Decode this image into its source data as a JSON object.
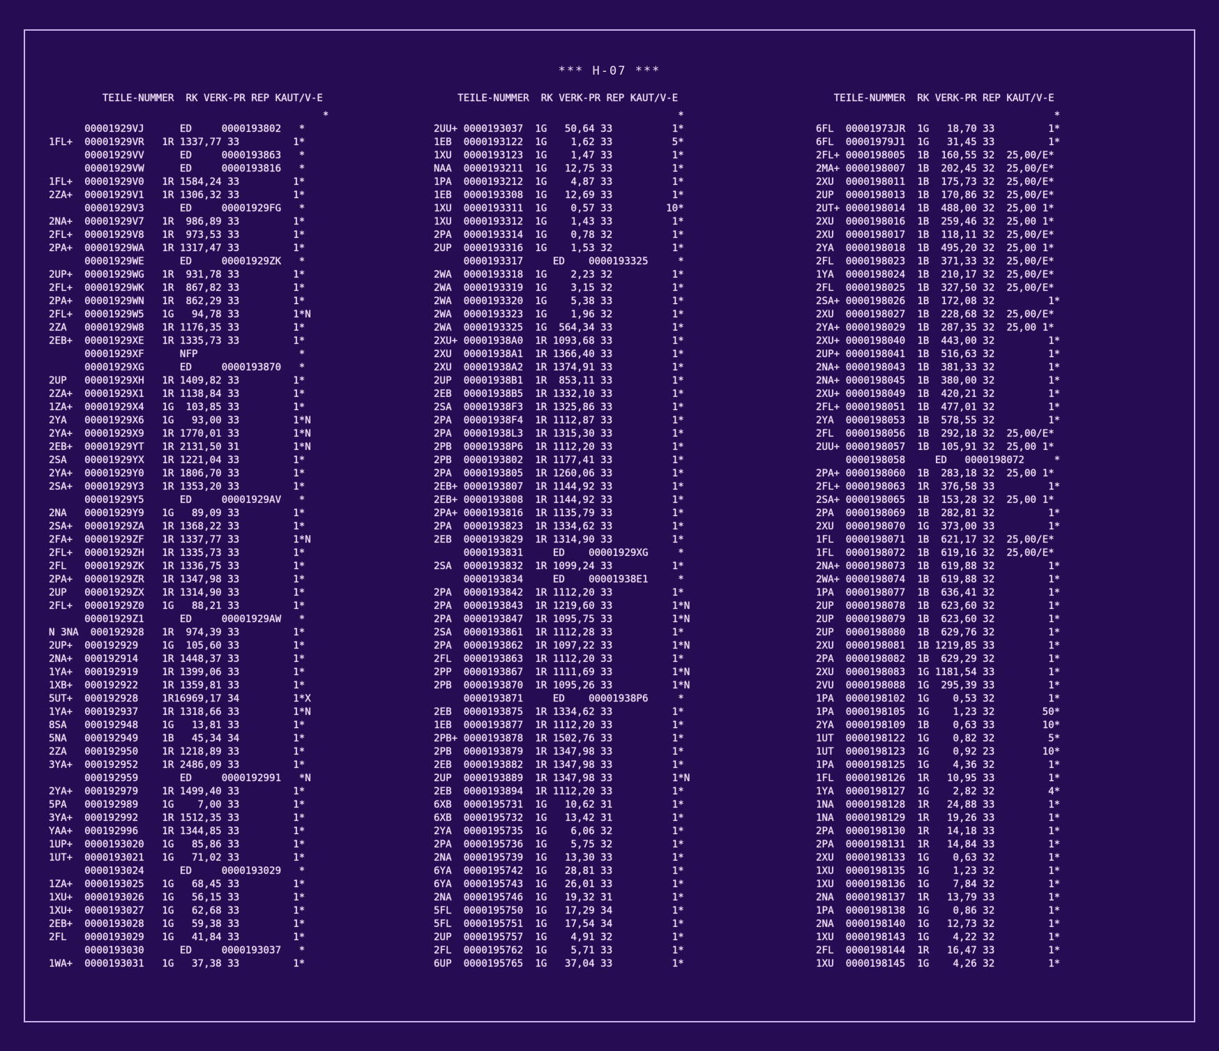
{
  "report": {
    "title": "*** H-07 ***"
  },
  "columns": [
    {
      "header": "         TEILE-NUMMER  RK VERK-PR REP KAUT/V-E",
      "star": "                                              *",
      "rows": [
        "      00001929VJ      ED     0000193802   *",
        "1FL+  00001929VR   1R 1337,77 33         1*",
        "      00001929VV      ED     0000193863   *",
        "      00001929VW      ED     0000193816   *",
        "1FL+  00001929V0   1R 1584,24 33         1*",
        "2ZA+  00001929V1   1R 1306,32 33         1*",
        "      00001929V3      ED     00001929FG   *",
        "2NA+  00001929V7   1R  986,89 33         1*",
        "2FL+  00001929V8   1R  973,53 33         1*",
        "2PA+  00001929WA   1R 1317,47 33         1*",
        "      00001929WE      ED     00001929ZK   *",
        "2UP+  00001929WG   1R  931,78 33         1*",
        "2FL+  00001929WK   1R  867,82 33         1*",
        "2PA+  00001929WN   1R  862,29 33         1*",
        "2FL+  00001929W5   1G   94,78 33         1*N",
        "2ZA   00001929W8   1R 1176,35 33         1*",
        "2EB+  00001929XE   1R 1335,73 33         1*",
        "      00001929XF      NFP                 *",
        "      00001929XG      ED     0000193870   *",
        "2UP   00001929XH   1R 1409,82 33         1*",
        "2ZA+  00001929X1   1R 1138,84 33         1*",
        "1ZA+  00001929X4   1G  103,85 33         1*",
        "2YA   00001929X6   1G   93,00 33         1*N",
        "2YA+  00001929X9   1R 1770,01 33         1*N",
        "2EB+  00001929YT   1R 2131,50 31         1*N",
        "2SA   00001929YX   1R 1221,04 33         1*",
        "2YA+  00001929Y0   1R 1806,70 33         1*",
        "2SA+  00001929Y3   1R 1353,20 33         1*",
        "      00001929Y5      ED     00001929AV   *",
        "2NA   00001929Y9   1G   89,09 33         1*",
        "2SA+  00001929ZA   1R 1368,22 33         1*",
        "2FA+  00001929ZF   1R 1337,77 33         1*N",
        "2FL+  00001929ZH   1R 1335,73 33         1*",
        "2FL   00001929ZK   1R 1336,75 33         1*",
        "2PA+  00001929ZR   1R 1347,98 33         1*",
        "2UP   00001929ZX   1R 1314,90 33         1*",
        "2FL+  00001929Z0   1G   88,21 33         1*",
        "      00001929Z1      ED     00001929AW   *",
        "N 3NA  000192928   1R  974,39 33         1*",
        "2UP+  000192929    1G  105,60 33         1*",
        "2NA+  000192914    1R 1448,37 33         1*",
        "1YA+  000192919    1R 1399,06 33         1*",
        "1XB+  000192922    1R 1359,81 33         1*",
        "5UT+  000192928    1R16969,17 34         1*X",
        "1YA+  000192937    1R 1318,66 33         1*N",
        "8SA   000192948    1G   13,81 33         1*",
        "5NA   000192949    1B   45,34 34         1*",
        "2ZA   000192950    1R 1218,89 33         1*",
        "3YA+  000192952    1R 2486,09 33         1*",
        "      000192959       ED     0000192991   *N",
        "2YA+  000192979    1R 1499,40 33         1*",
        "5PA   000192989    1G    7,00 33         1*",
        "3YA+  000192992    1R 1512,35 33         1*",
        "YAA+  000192996    1R 1344,85 33         1*",
        "1UP+  0000193020   1G   85,86 33         1*",
        "1UT+  0000193021   1G   71,02 33         1*",
        "      0000193024      ED     0000193029   *",
        "1ZA+  0000193025   1G   68,45 33         1*",
        "1XU+  0000193026   1G   56,15 33         1*",
        "1XU+  0000193027   1G   62,68 33         1*",
        "2EB+  0000193028   1G   59,38 33         1*",
        "2FL   0000193029   1G   41,84 33         1*",
        "      0000193030      ED     0000193037   *",
        "1WA+  0000193031   1G   37,38 33         1*"
      ]
    },
    {
      "header": "    TEILE-NUMMER  RK VERK-PR REP KAUT/V-E",
      "star": "                                         *",
      "rows": [
        "2UU+ 0000193037  1G   50,64 33          1*",
        "1EB  0000193122  1G    1,62 33          5*",
        "1XU  0000193123  1G    1,47 33          1*",
        "NAA  0000193211  1G   12,75 33          1*",
        "1PA  0000193212  1G    4,87 33          1*",
        "1EB  0000193308  1G   12,69 33          1*",
        "1XU  0000193311  1G    0,57 33         10*",
        "1XU  0000193312  1G    1,43 33          1*",
        "2PA  0000193314  1G    0,78 32          1*",
        "2UP  0000193316  1G    1,53 32          1*",
        "     0000193317     ED    0000193325     *",
        "2WA  0000193318  1G    2,23 32          1*",
        "2WA  0000193319  1G    3,15 32          1*",
        "2WA  0000193320  1G    5,38 33          1*",
        "2WA  0000193323  1G    1,96 32          1*",
        "2WA  0000193325  1G  564,34 33          1*",
        "2XU+ 00001938A0  1R 1093,68 33          1*",
        "2XU  00001938A1  1R 1366,40 33          1*",
        "2XU  00001938A2  1R 1374,91 33          1*",
        "2UP  00001938B1  1R  853,11 33          1*",
        "2EB  00001938B5  1R 1332,10 33          1*",
        "2SA  00001938F3  1R 1325,86 33          1*",
        "2PA  00001938F4  1R 1112,87 33          1*",
        "2PA  00001938L3  1R 1315,30 33          1*",
        "2PB  00001938P6  1R 1112,20 33          1*",
        "2PB  0000193802  1R 1177,41 33          1*",
        "2PA  0000193805  1R 1260,06 33          1*",
        "2EB+ 0000193807  1R 1144,92 33          1*",
        "2EB+ 0000193808  1R 1144,92 33          1*",
        "2PA+ 0000193816  1R 1135,79 33          1*",
        "2PA  0000193823  1R 1334,62 33          1*",
        "2EB  0000193829  1R 1314,90 33          1*",
        "     0000193831     ED    00001929XG     *",
        "2SA  0000193832  1R 1099,24 33          1*",
        "     0000193834     ED    00001938E1     *",
        "2PA  0000193842  1R 1112,20 33          1*",
        "2PA  0000193843  1R 1219,60 33          1*N",
        "2PA  0000193847  1R 1095,75 33          1*N",
        "2SA  0000193861  1R 1112,28 33          1*",
        "2PA  0000193862  1R 1097,22 33          1*N",
        "2FL  0000193863  1R 1112,20 33          1*",
        "2PP  0000193867  1R 1111,69 33          1*N",
        "2PB  0000193870  1R 1095,26 33          1*N",
        "     0000193871     ED    00001938P6     *",
        "2EB  0000193875  1R 1334,62 33          1*",
        "1EB  0000193877  1R 1112,20 33          1*",
        "2PB+ 0000193878  1R 1502,76 33          1*",
        "2PB  0000193879  1R 1347,98 33          1*",
        "2EB  0000193882  1R 1347,98 33          1*",
        "2UP  0000193889  1R 1347,98 33          1*N",
        "2EB  0000193894  1R 1112,20 33          1*",
        "6XB  0000195731  1G   10,62 31          1*",
        "6XB  0000195732  1G   13,42 31          1*",
        "2YA  0000195735  1G    6,06 32          1*",
        "2PA  0000195736  1G    5,75 32          1*",
        "2NA  0000195739  1G   13,30 33          1*",
        "6YA  0000195742  1G   28,81 33          1*",
        "6YA  0000195743  1G   26,01 33          1*",
        "2NA  0000195746  1G   19,32 31          1*",
        "5FL  0000195750  1G   17,29 34          1*",
        "5FL  0000195751  1G   17,54 34          1*",
        "2UP  0000195757  1G    4,91 32          1*",
        "2FL  0000195762  1G    5,71 33          1*",
        "6UP  0000195765  1G   37,04 33          1*"
      ]
    },
    {
      "header": "   TEILE-NUMMER  RK VERK-PR REP KAUT/V-E",
      "star": "                                        *",
      "rows": [
        "6FL  00001973JR  1G   18,70 33         1*",
        "6FL  00001979J1  1G   31,45 33         1*",
        "2FL+ 0000198005  1B  160,55 32  25,00/E*",
        "2MA+ 0000198007  1B  202,45 32  25,00/E*",
        "2XU  0000198011  1B  175,73 32  25,00/E*",
        "2UP  0000198013  1B  170,86 32  25,00/E*",
        "2UT+ 0000198014  1B  488,00 32  25,00 1*",
        "2XU  0000198016  1B  259,46 32  25,00 1*",
        "2XU  0000198017  1B  118,11 32  25,00/E*",
        "2YA  0000198018  1B  495,20 32  25,00 1*",
        "2FL  0000198023  1B  371,33 32  25,00/E*",
        "1YA  0000198024  1B  210,17 32  25,00/E*",
        "2FL  0000198025  1B  327,50 32  25,00/E*",
        "2SA+ 0000198026  1B  172,08 32         1*",
        "2XU  0000198027  1B  228,68 32  25,00/E*",
        "2YA+ 0000198029  1B  287,35 32  25,00 1*",
        "2XU+ 0000198040  1B  443,00 32         1*",
        "2UP+ 0000198041  1B  516,63 32         1*",
        "2NA+ 0000198043  1B  381,33 32         1*",
        "2NA+ 0000198045  1B  380,00 32         1*",
        "2XU+ 0000198049  1B  420,21 32         1*",
        "2FL+ 0000198051  1B  477,01 32         1*",
        "2YA  0000198053  1B  578,55 32         1*",
        "2FL  0000198056  1B  292,18 32  25,00/E*",
        "2UU+ 0000198057  1B  105,91 32  25,00 1*",
        "     0000198058     ED   0000198072     *",
        "2PA+ 0000198060  1B  283,18 32  25,00 1*",
        "2FL+ 0000198063  1R  376,58 33         1*",
        "2SA+ 0000198065  1B  153,28 32  25,00 1*",
        "2PA  0000198069  1B  282,81 32         1*",
        "2XU  0000198070  1G  373,00 33         1*",
        "1FL  0000198071  1B  621,17 32  25,00/E*",
        "1FL  0000198072  1B  619,16 32  25,00/E*",
        "2NA+ 0000198073  1B  619,88 32         1*",
        "2WA+ 0000198074  1B  619,88 32         1*",
        "1PA  0000198077  1B  636,41 32         1*",
        "2UP  0000198078  1B  623,60 32         1*",
        "2UP  0000198079  1B  623,60 32         1*",
        "2UP  0000198080  1B  629,76 32         1*",
        "2XU  0000198081  1B 1219,85 33         1*",
        "2PA  0000198082  1B  629,29 32         1*",
        "2XU  0000198083  1G 1181,54 33         1*",
        "2VU  0000198088  1G  295,39 33         1*",
        "1PA  0000198102  1G    0,53 32         1*",
        "1PA  0000198105  1G    1,23 32        50*",
        "2YA  0000198109  1B    0,63 33        10*",
        "1UT  0000198122  1G    0,82 32         5*",
        "1UT  0000198123  1G    0,92 23        10*",
        "1PA  0000198125  1G    4,36 32         1*",
        "1FL  0000198126  1R   10,95 33         1*",
        "1YA  0000198127  1G    2,82 32         4*",
        "1NA  0000198128  1R   24,88 33         1*",
        "1NA  0000198129  1R   19,26 33         1*",
        "2PA  0000198130  1R   14,18 33         1*",
        "2PA  0000198131  1R   14,84 33         1*",
        "2XU  0000198133  1G    0,63 32         1*",
        "1XU  0000198135  1G    1,23 32         1*",
        "1XU  0000198136  1G    7,84 32         1*",
        "2NA  0000198137  1R   13,79 33         1*",
        "1PA  0000198138  1G    0,86 32         1*",
        "2NA  0000198140  1G   12,73 32         1*",
        "1XU  0000198143  1G    4,22 32         1*",
        "2FL  0000198144  1R   16,47 33         1*",
        "1XU  0000198145  1G    4,26 32         1*"
      ]
    }
  ]
}
